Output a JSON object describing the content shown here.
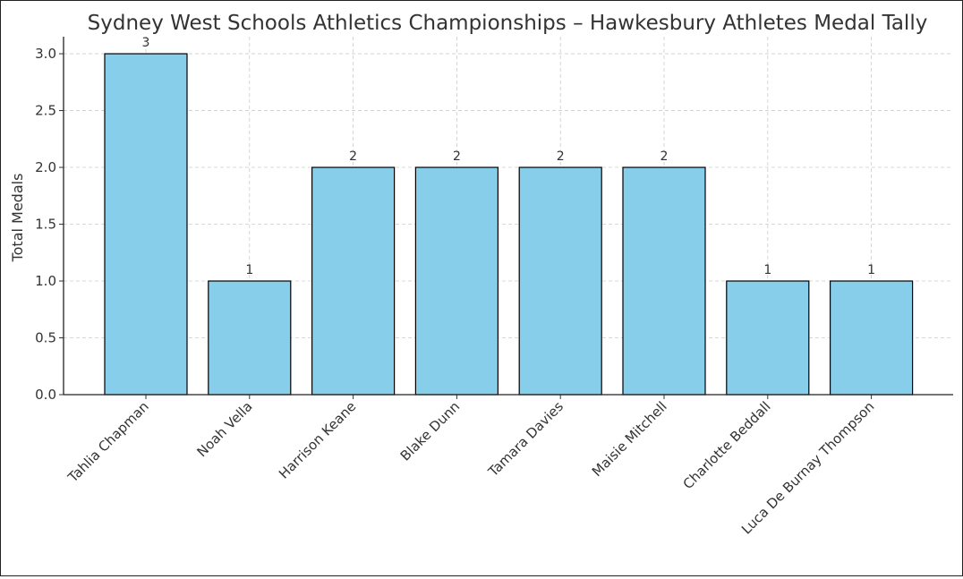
{
  "chart_data": {
    "type": "bar",
    "title": "Sydney West Schools Athletics Championships – Hawkesbury Athletes Medal Tally",
    "xlabel": "",
    "ylabel": "Total Medals",
    "categories": [
      "Tahlia Chapman",
      "Noah Vella",
      "Harrison Keane",
      "Blake Dunn",
      "Tamara Davies",
      "Maisie Mitchell",
      "Charlotte Beddall",
      "Luca De Burnay Thompson"
    ],
    "values": [
      3,
      1,
      2,
      2,
      2,
      2,
      1,
      1
    ],
    "data_labels": [
      "3",
      "1",
      "2",
      "2",
      "2",
      "2",
      "1",
      "1"
    ],
    "yticks": [
      "0.0",
      "0.5",
      "1.0",
      "1.5",
      "2.0",
      "2.5",
      "3.0"
    ],
    "ylim": [
      0,
      3.15
    ],
    "grid": true,
    "bar_color": "#87ceeb",
    "bar_edge_color": "#000000",
    "grid_color": "#cccccc"
  }
}
